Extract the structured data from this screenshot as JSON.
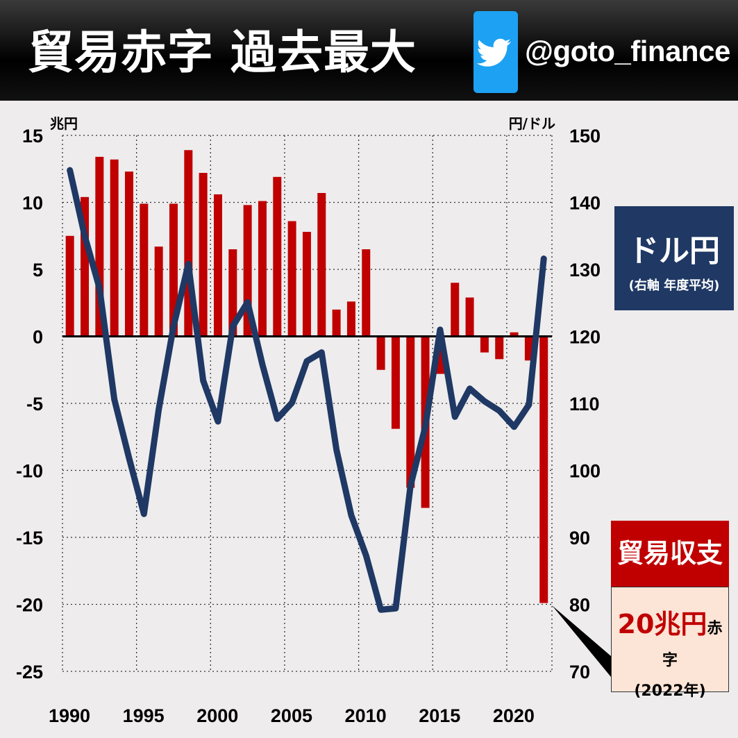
{
  "header": {
    "title": "貿易赤字 過去最大",
    "handle": "@goto_finance",
    "icon": "twitter-bird-icon"
  },
  "legend": {
    "usd_title": "ドル円",
    "usd_sub": "(右軸 年度平均)",
    "trade_title": "貿易収支",
    "trade_value": "20兆円",
    "trade_suffix": "赤字",
    "trade_year": "(2022年)"
  },
  "chart_data": {
    "type": "bar+line",
    "left_unit": "兆円",
    "right_unit": "円/ドル",
    "left_ylim": [
      -25,
      15
    ],
    "right_ylim": [
      70,
      150
    ],
    "left_ticks": [
      15,
      10,
      5,
      0,
      -5,
      -10,
      -15,
      -20,
      -25
    ],
    "right_ticks": [
      150,
      140,
      130,
      120,
      110,
      100,
      90,
      80,
      70
    ],
    "x_ticks": [
      1990,
      1995,
      2000,
      2005,
      2010,
      2015,
      2020
    ],
    "grid": true,
    "colors": {
      "bar": "#c00000",
      "line": "#1f3864"
    },
    "years": [
      1990,
      1991,
      1992,
      1993,
      1994,
      1995,
      1996,
      1997,
      1998,
      1999,
      2000,
      2001,
      2002,
      2003,
      2004,
      2005,
      2006,
      2007,
      2008,
      2009,
      2010,
      2011,
      2012,
      2013,
      2014,
      2015,
      2016,
      2017,
      2018,
      2019,
      2020,
      2021,
      2022
    ],
    "trade_balance": [
      7.5,
      10.4,
      13.4,
      13.2,
      12.3,
      9.9,
      6.7,
      9.9,
      13.9,
      12.2,
      10.6,
      6.5,
      9.8,
      10.1,
      11.9,
      8.6,
      7.8,
      10.7,
      2.0,
      2.6,
      6.5,
      -2.5,
      -6.9,
      -11.3,
      -12.8,
      -2.8,
      4.0,
      2.9,
      -1.2,
      -1.7,
      0.3,
      -1.8,
      -19.9
    ],
    "usd_jpy": [
      144.8,
      135,
      127.2,
      110.6,
      101.8,
      93.5,
      109.1,
      121.5,
      130.8,
      113.4,
      107.3,
      121.5,
      125.1,
      115.8,
      107.7,
      110.1,
      116.3,
      117.6,
      103.1,
      93.3,
      87.3,
      79.2,
      79.4,
      97.7,
      106.5,
      121,
      108,
      112.2,
      110.3,
      108.9,
      106.5,
      109.8,
      131.6
    ]
  }
}
